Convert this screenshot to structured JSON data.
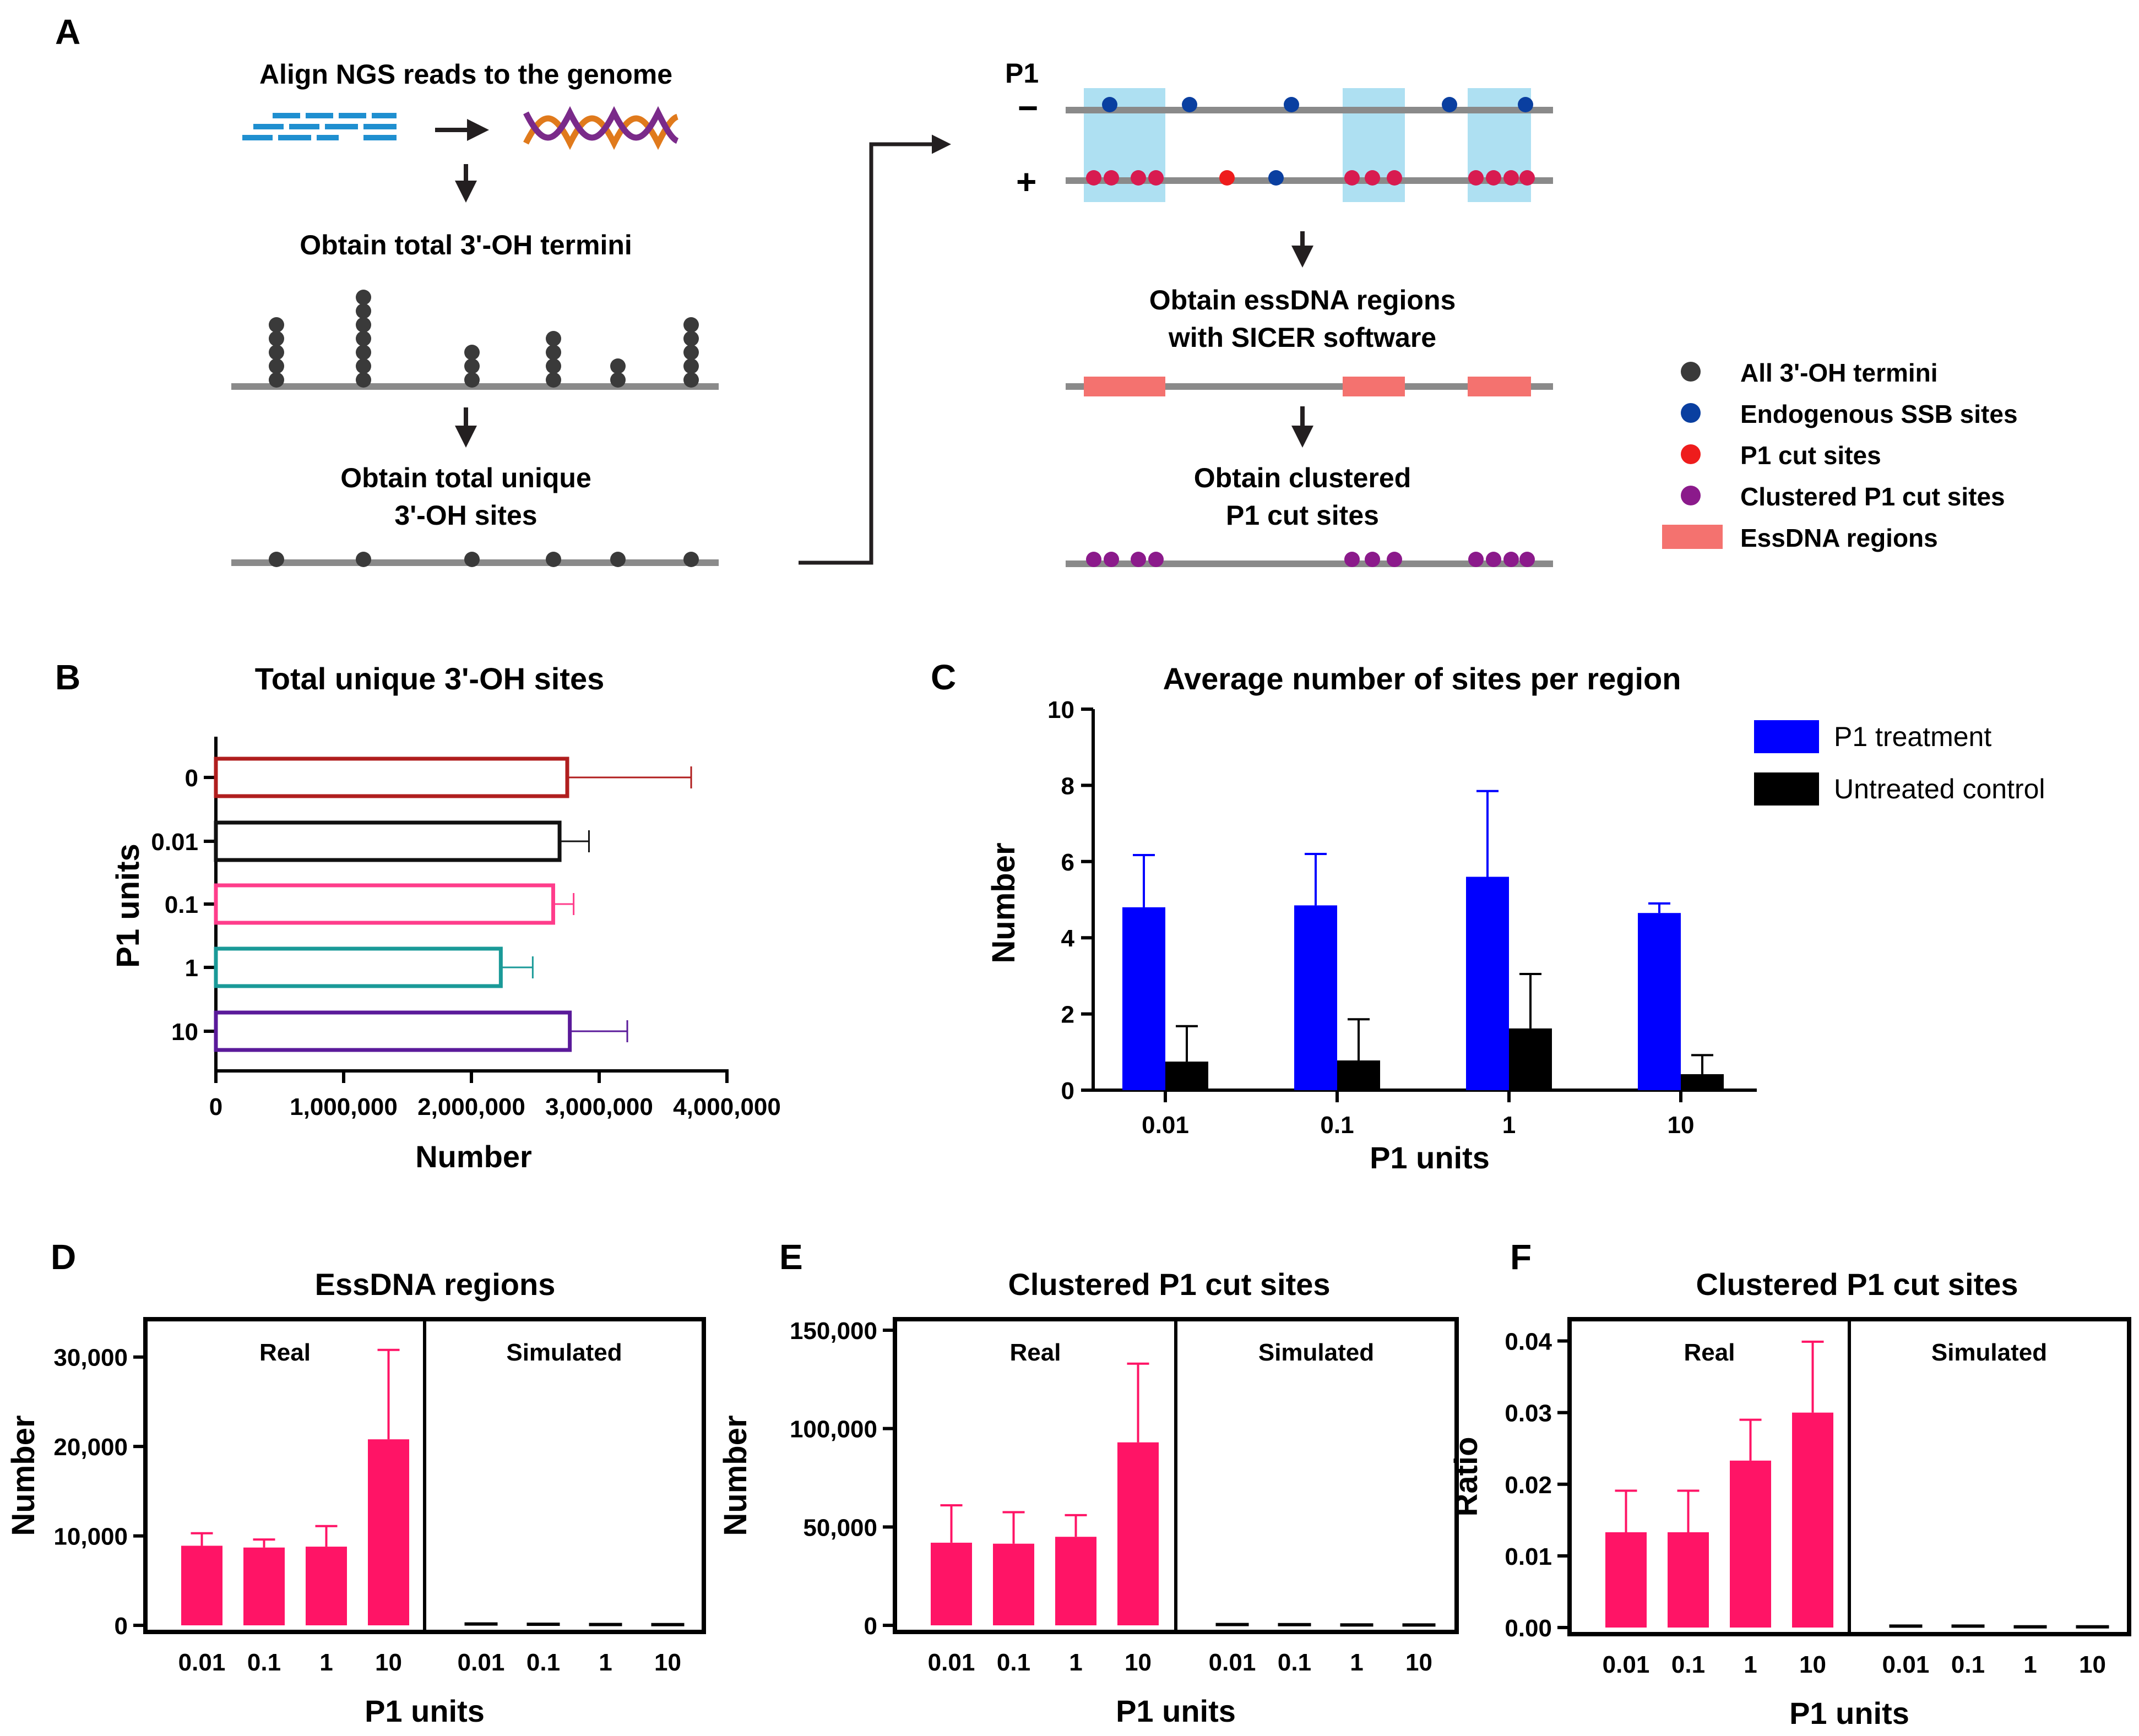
{
  "panel_letters": {
    "a": "A",
    "b": "B",
    "c": "C",
    "d": "D",
    "e": "E",
    "f": "F"
  },
  "workflow": {
    "step_align": "Align NGS reads to the genome",
    "step_total_termini": "Obtain total 3'-OH termini",
    "step_unique_line1": "Obtain total unique",
    "step_unique_line2": "3'-OH sites",
    "strand_label": "P1",
    "minus_strand": "−",
    "plus_strand": "+",
    "step_essdna_line1": "Obtain essDNA regions",
    "step_essdna_line2": "with SICER software",
    "step_clustered_line1": "Obtain clustered",
    "step_clustered_line2": "P1 cut sites",
    "termini_stack_heights": [
      5,
      7,
      3,
      4,
      2,
      5
    ]
  },
  "legend_a": {
    "items": [
      {
        "label": "All 3'-OH termini",
        "color": "#3a3a3a",
        "shape": "circle"
      },
      {
        "label": "Endogenous SSB sites",
        "color": "#0a3fa0",
        "shape": "circle"
      },
      {
        "label": "P1 cut sites",
        "color": "#ee1c1c",
        "shape": "circle"
      },
      {
        "label": "Clustered P1 cut sites",
        "color": "#8b1a8b",
        "shape": "circle"
      },
      {
        "label": "EssDNA regions",
        "color": "#f4726f",
        "shape": "rect"
      }
    ]
  },
  "colors": {
    "region_blue": "#aee0f2",
    "region_red": "#f4726f",
    "magenta_dot": "#d81b50",
    "bar_pink": "#ff1466",
    "bar_blue": "#0000ff",
    "axis": "#000000",
    "line_gray": "#8a8a8a"
  },
  "chart_data": [
    {
      "id": "B",
      "type": "bar",
      "orientation": "horizontal",
      "title": "Total unique 3'-OH sites",
      "xlabel": "Number",
      "ylabel": "P1 units",
      "categories": [
        "0",
        "0.01",
        "0.1",
        "1",
        "10"
      ],
      "values": [
        2750000,
        2690000,
        2640000,
        2230000,
        2770000
      ],
      "errors": [
        970000,
        230000,
        160000,
        250000,
        450000
      ],
      "bar_colors": [
        "#b01e1e",
        "#111111",
        "#ff3d8b",
        "#1a9a98",
        "#5a1a9a"
      ],
      "xlim": [
        0,
        4000000
      ],
      "xticks": [
        "0",
        "1,000,000",
        "2,000,000",
        "3,000,000",
        "4,000,000"
      ],
      "fill": "none"
    },
    {
      "id": "C",
      "type": "bar",
      "title": "Average number of sites per region",
      "xlabel": "P1 units",
      "ylabel": "Number",
      "categories": [
        "0.01",
        "0.1",
        "1",
        "10"
      ],
      "ylim": [
        0,
        10
      ],
      "yticks": [
        "0",
        "2",
        "4",
        "6",
        "8",
        "10"
      ],
      "legend_position": "top-right",
      "series": [
        {
          "name": "P1 treatment",
          "color": "#0000ff",
          "values": [
            4.8,
            4.85,
            5.6,
            4.65
          ],
          "errors": [
            1.37,
            1.35,
            2.25,
            0.25
          ]
        },
        {
          "name": "Untreated control",
          "color": "#000000",
          "values": [
            0.75,
            0.78,
            1.62,
            0.42
          ],
          "errors": [
            0.93,
            1.08,
            1.43,
            0.5
          ]
        }
      ]
    },
    {
      "id": "D",
      "type": "bar",
      "title": "EssDNA regions",
      "xlabel": "P1 units",
      "ylabel": "Number",
      "categories": [
        "0.01",
        "0.1",
        "1",
        "10"
      ],
      "ylim": [
        0,
        33000
      ],
      "yticks": [
        "0",
        "10,000",
        "20,000",
        "30,000"
      ],
      "ytick_values": [
        0,
        10000,
        20000,
        30000
      ],
      "groups": [
        {
          "name": "Real",
          "values": [
            8900,
            8700,
            8800,
            20800
          ],
          "errors": [
            1400,
            900,
            2300,
            10000
          ]
        },
        {
          "name": "Simulated",
          "values": [
            150,
            120,
            90,
            80
          ],
          "errors": [
            60,
            50,
            40,
            40
          ]
        }
      ]
    },
    {
      "id": "E",
      "type": "bar",
      "title": "Clustered P1 cut sites",
      "xlabel": "P1 units",
      "ylabel": "Number",
      "categories": [
        "0.01",
        "0.1",
        "1",
        "10"
      ],
      "ylim": [
        0,
        150000
      ],
      "yticks": [
        "0",
        "50,000",
        "100,000",
        "150,000"
      ],
      "ytick_values": [
        0,
        50000,
        100000,
        150000
      ],
      "groups": [
        {
          "name": "Real",
          "values": [
            42000,
            41500,
            45000,
            93000
          ],
          "errors": [
            19000,
            16000,
            11000,
            40000
          ]
        },
        {
          "name": "Simulated",
          "values": [
            400,
            350,
            200,
            180
          ],
          "errors": [
            200,
            180,
            100,
            100
          ]
        }
      ]
    },
    {
      "id": "F",
      "type": "bar",
      "title": "Clustered P1 cut sites",
      "xlabel": "P1 units",
      "ylabel": "Ratio",
      "categories": [
        "0.01",
        "0.1",
        "1",
        "10"
      ],
      "ylim": [
        -0.001,
        0.0415
      ],
      "yticks": [
        "0.00",
        "0.01",
        "0.02",
        "0.03",
        "0.04"
      ],
      "ytick_values": [
        0,
        0.01,
        0.02,
        0.03,
        0.04
      ],
      "groups": [
        {
          "name": "Real",
          "values": [
            0.0133,
            0.0133,
            0.0233,
            0.03
          ],
          "errors": [
            0.0058,
            0.0058,
            0.0057,
            0.0099
          ]
        },
        {
          "name": "Simulated",
          "values": [
            0.0002,
            0.0002,
            0.0001,
            0.0001
          ],
          "errors": [
            0.0001,
            0.0001,
            0.0001,
            0.0001
          ]
        }
      ]
    }
  ]
}
